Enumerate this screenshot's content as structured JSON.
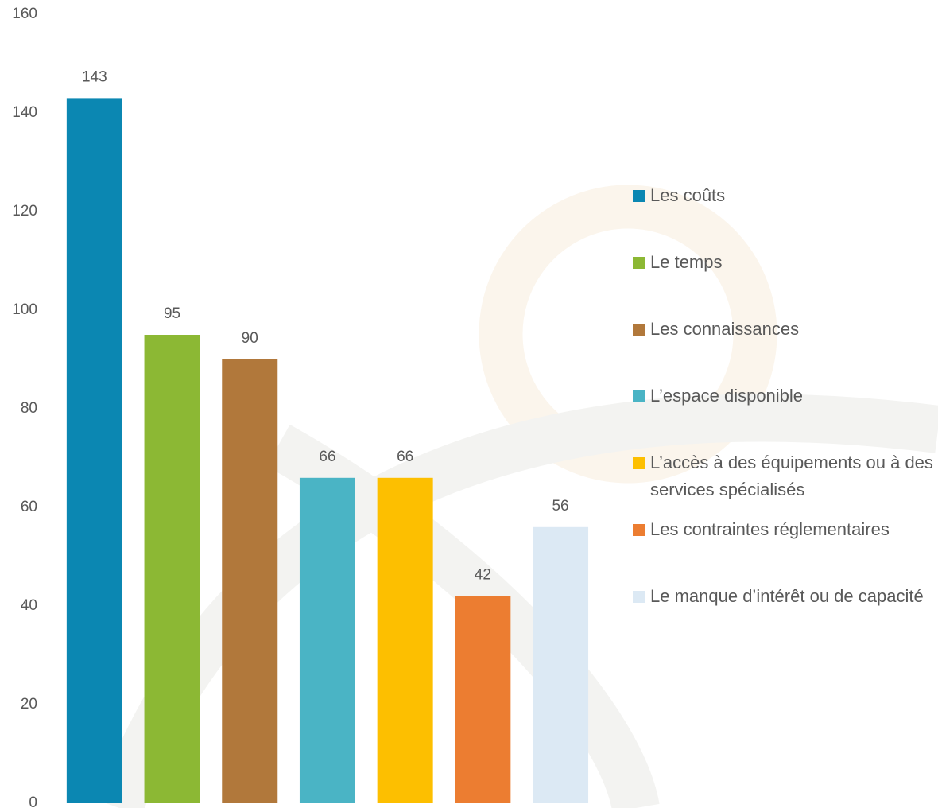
{
  "chart_data": {
    "type": "bar",
    "series": [
      {
        "name": "Les coûts",
        "color": "#0b87b2",
        "values": [
          143
        ]
      },
      {
        "name": "Le temps",
        "color": "#8cb834",
        "values": [
          95
        ]
      },
      {
        "name": "Les connaissances",
        "color": "#b1783b",
        "values": [
          90
        ]
      },
      {
        "name": "L’espace disponible",
        "color": "#4ab4c5",
        "values": [
          66
        ]
      },
      {
        "name": "L’accès à des équipements ou à des services spécialisés",
        "color": "#fdbf00",
        "values": [
          66
        ]
      },
      {
        "name": "Les contraintes réglementaires",
        "color": "#ec7d31",
        "values": [
          42
        ]
      },
      {
        "name": "Le manque d’intérêt ou de capacité",
        "color": "#dce9f4",
        "values": [
          56
        ]
      }
    ],
    "ylim": [
      0,
      160
    ],
    "yticks": [
      0,
      20,
      40,
      60,
      80,
      100,
      120,
      140,
      160
    ],
    "legend": "right",
    "data_labels": true
  }
}
